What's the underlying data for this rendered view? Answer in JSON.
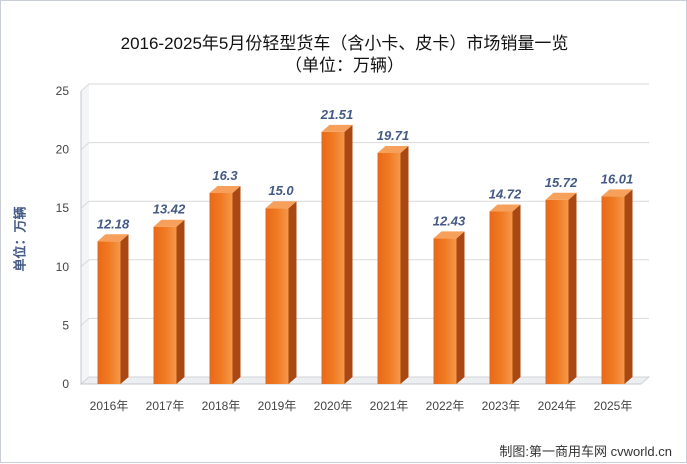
{
  "chart_data": {
    "type": "bar",
    "title": "2016-2025年5月份轻型货车（含小卡、皮卡）市场销量一览",
    "subtitle": "（单位：万辆）",
    "xlabel": "",
    "ylabel": "单位：万辆",
    "ylim": [
      0,
      25
    ],
    "yticks": [
      "0",
      "5",
      "10",
      "15",
      "20",
      "25"
    ],
    "grid": true,
    "categories": [
      "2016年",
      "2017年",
      "2018年",
      "2019年",
      "2020年",
      "2021年",
      "2022年",
      "2023年",
      "2024年",
      "2025年"
    ],
    "values": [
      12.18,
      13.42,
      16.3,
      15.0,
      21.51,
      19.71,
      12.43,
      14.72,
      15.72,
      16.01
    ],
    "labels": [
      "12.18",
      "13.42",
      "16.3",
      "15.0",
      "21.51",
      "19.71",
      "12.43",
      "14.72",
      "15.72",
      "16.01"
    ]
  },
  "credit": "制图:第一商用车网 cvworld.cn",
  "colors": {
    "bar_front": "#f07a22",
    "bar_side": "#a94813",
    "bar_top": "#f7a05c",
    "label": "#445a84",
    "grid": "#d9d9d9"
  }
}
